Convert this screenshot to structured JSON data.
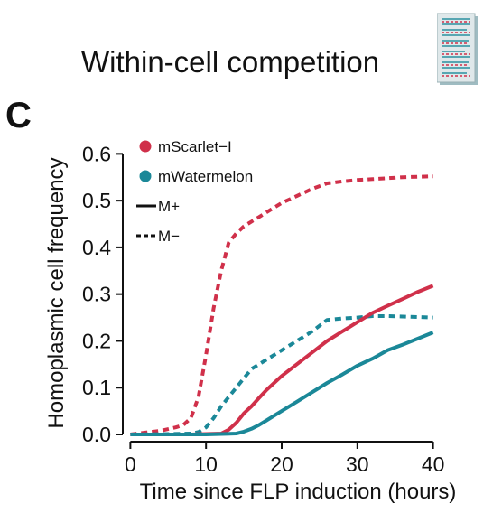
{
  "header": {
    "title": "Within-cell competition",
    "panel_label": "C"
  },
  "icons": {
    "document": "document-thumbnail-icon"
  },
  "colors": {
    "mscarlet": "#d0304a",
    "mwatermelon": "#1b8898"
  },
  "chart_data": {
    "type": "line",
    "xlabel": "Time since FLP induction (hours)",
    "ylabel": "Homoplasmic cell frequency",
    "xlim": [
      -1,
      41
    ],
    "ylim": [
      0,
      0.62
    ],
    "xticks": [
      0,
      10,
      20,
      30,
      40
    ],
    "yticks": [
      0.0,
      0.1,
      0.2,
      0.3,
      0.4,
      0.5,
      0.6
    ],
    "xtick_labels": [
      "0",
      "10",
      "20",
      "30",
      "40"
    ],
    "ytick_labels": [
      "0.0",
      "0.1",
      "0.2",
      "0.3",
      "0.4",
      "0.5",
      "0.6"
    ],
    "grid": false,
    "legend": {
      "position": "top-left",
      "entries": [
        {
          "label": "mScarlet−I",
          "marker": "dot",
          "color": "#d0304a"
        },
        {
          "label": "mWatermelon",
          "marker": "dot",
          "color": "#1b8898"
        },
        {
          "label": "M+",
          "marker": "solid-line",
          "color": "#111111"
        },
        {
          "label": "M−",
          "marker": "dashed-line",
          "color": "#111111"
        }
      ]
    },
    "series": [
      {
        "color": "#d0304a",
        "style": "dashed",
        "x": [
          0,
          2,
          4,
          6,
          7,
          8,
          9,
          10,
          11,
          12,
          13,
          14,
          15,
          16,
          17,
          18,
          19,
          20,
          22,
          24,
          26,
          28,
          30,
          32,
          34,
          36,
          38,
          40
        ],
        "y": [
          0.0,
          0.004,
          0.008,
          0.015,
          0.02,
          0.035,
          0.08,
          0.17,
          0.27,
          0.35,
          0.41,
          0.43,
          0.445,
          0.455,
          0.465,
          0.475,
          0.485,
          0.495,
          0.51,
          0.525,
          0.537,
          0.541,
          0.544,
          0.546,
          0.548,
          0.55,
          0.551,
          0.552
        ]
      },
      {
        "color": "#1b8898",
        "style": "dashed",
        "x": [
          0,
          5,
          8,
          9,
          10,
          11,
          12,
          13,
          14,
          15,
          16,
          18,
          20,
          22,
          24,
          26,
          28,
          30,
          32,
          34,
          36,
          38,
          40
        ],
        "y": [
          0.0,
          0.001,
          0.002,
          0.005,
          0.015,
          0.035,
          0.06,
          0.08,
          0.1,
          0.12,
          0.14,
          0.16,
          0.18,
          0.2,
          0.22,
          0.245,
          0.248,
          0.25,
          0.253,
          0.253,
          0.252,
          0.251,
          0.25
        ]
      },
      {
        "color": "#d0304a",
        "style": "solid",
        "x": [
          0,
          8,
          12,
          13,
          14,
          15,
          16,
          17,
          18,
          19,
          20,
          22,
          24,
          26,
          28,
          30,
          32,
          34,
          36,
          38,
          40
        ],
        "y": [
          0.0,
          0.0,
          0.002,
          0.01,
          0.025,
          0.045,
          0.06,
          0.078,
          0.095,
          0.11,
          0.125,
          0.15,
          0.175,
          0.2,
          0.22,
          0.24,
          0.26,
          0.275,
          0.29,
          0.305,
          0.318
        ]
      },
      {
        "color": "#1b8898",
        "style": "solid",
        "x": [
          0,
          10,
          14,
          15,
          16,
          17,
          18,
          20,
          22,
          24,
          26,
          28,
          30,
          32,
          34,
          36,
          38,
          40
        ],
        "y": [
          0.0,
          0.0,
          0.002,
          0.006,
          0.012,
          0.02,
          0.03,
          0.05,
          0.07,
          0.09,
          0.11,
          0.128,
          0.147,
          0.162,
          0.18,
          0.192,
          0.205,
          0.218
        ]
      }
    ]
  }
}
